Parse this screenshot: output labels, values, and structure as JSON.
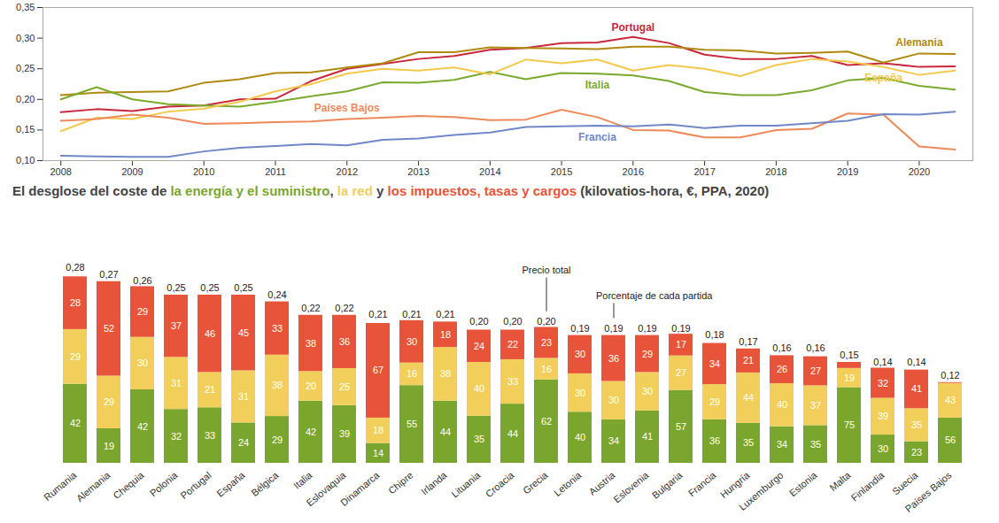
{
  "chart_data": [
    {
      "type": "line",
      "x": [
        2008,
        2008.5,
        2009,
        2009.5,
        2010,
        2010.5,
        2011,
        2011.5,
        2012,
        2012.5,
        2013,
        2013.5,
        2014,
        2014.5,
        2015,
        2015.5,
        2016,
        2016.5,
        2017,
        2017.5,
        2018,
        2018.5,
        2019,
        2019.5,
        2020,
        2020.5
      ],
      "xlim": [
        2007.75,
        2020.75
      ],
      "xticks": [
        2008,
        2009,
        2010,
        2011,
        2012,
        2013,
        2014,
        2015,
        2016,
        2017,
        2018,
        2019,
        2020
      ],
      "ylim": [
        0.1,
        0.35
      ],
      "yticks": [
        {
          "value": 0.1,
          "label": "0,10"
        },
        {
          "value": 0.15,
          "label": "0,15"
        },
        {
          "value": 0.2,
          "label": "0,20"
        },
        {
          "value": 0.25,
          "label": "0,25"
        },
        {
          "value": 0.3,
          "label": "0,30"
        },
        {
          "value": 0.35,
          "label": "0,35"
        }
      ],
      "grid": false,
      "series": [
        {
          "name": "Portugal",
          "color": "#c8283c",
          "values": [
            0.179,
            0.184,
            0.181,
            0.188,
            0.19,
            0.2,
            0.201,
            0.23,
            0.25,
            0.258,
            0.266,
            0.271,
            0.281,
            0.284,
            0.292,
            0.293,
            0.302,
            0.292,
            0.273,
            0.266,
            0.266,
            0.271,
            0.256,
            0.259,
            0.253,
            0.254
          ]
        },
        {
          "name": "Alemania",
          "color": "#b08a10",
          "values": [
            0.207,
            0.211,
            0.212,
            0.213,
            0.227,
            0.233,
            0.243,
            0.244,
            0.252,
            0.259,
            0.277,
            0.277,
            0.285,
            0.284,
            0.283,
            0.282,
            0.286,
            0.286,
            0.281,
            0.28,
            0.275,
            0.276,
            0.278,
            0.26,
            0.275,
            0.274
          ]
        },
        {
          "name": "Italia",
          "color": "#7aaa2e",
          "values": [
            0.2,
            0.22,
            0.2,
            0.192,
            0.19,
            0.188,
            0.196,
            0.205,
            0.213,
            0.228,
            0.227,
            0.232,
            0.245,
            0.233,
            0.243,
            0.242,
            0.239,
            0.23,
            0.212,
            0.207,
            0.207,
            0.215,
            0.231,
            0.235,
            0.222,
            0.216
          ]
        },
        {
          "name": "España",
          "color": "#f2c94c",
          "values": [
            0.148,
            0.17,
            0.168,
            0.18,
            0.185,
            0.196,
            0.213,
            0.225,
            0.242,
            0.25,
            0.247,
            0.252,
            0.241,
            0.265,
            0.259,
            0.265,
            0.247,
            0.256,
            0.25,
            0.238,
            0.256,
            0.266,
            0.262,
            0.253,
            0.24,
            0.247
          ]
        },
        {
          "name": "Países Bajos",
          "color": "#ee8a5a",
          "values": [
            0.165,
            0.168,
            0.175,
            0.17,
            0.16,
            0.161,
            0.163,
            0.164,
            0.168,
            0.17,
            0.173,
            0.171,
            0.166,
            0.167,
            0.183,
            0.171,
            0.15,
            0.149,
            0.138,
            0.138,
            0.15,
            0.152,
            0.177,
            0.175,
            0.123,
            0.118
          ]
        },
        {
          "name": "Francia",
          "color": "#7088c8",
          "values": [
            0.108,
            0.107,
            0.106,
            0.106,
            0.115,
            0.121,
            0.124,
            0.127,
            0.125,
            0.134,
            0.136,
            0.142,
            0.146,
            0.155,
            0.156,
            0.157,
            0.156,
            0.159,
            0.153,
            0.157,
            0.157,
            0.161,
            0.165,
            0.176,
            0.175,
            0.18
          ]
        }
      ]
    },
    {
      "type": "bar",
      "title": "El desglose del coste de la energía y el suministro, la red y los impuestos, tasas y cargos (kilovatios-hora, €, PPA, 2020)",
      "stacked": true,
      "data_labels": true,
      "tick_labels": "x",
      "categories": [
        "Rumania",
        "Alemania",
        "Chequia",
        "Polonia",
        "Portugal",
        "España",
        "Bélgica",
        "Italia",
        "Eslovaquia",
        "Dinamarca",
        "Chipre",
        "Irlanda",
        "Lituania",
        "Croacia",
        "Grecia",
        "Letonia",
        "Austria",
        "Eslovenia",
        "Bulgaria",
        "Francia",
        "Hungría",
        "Luxemburgo",
        "Estonia",
        "Malta",
        "Finlandia",
        "Suecia",
        "Países Bajos"
      ],
      "totals": [
        0.28,
        0.27,
        0.26,
        0.25,
        0.25,
        0.25,
        0.24,
        0.22,
        0.22,
        0.21,
        0.21,
        0.21,
        0.2,
        0.2,
        0.2,
        0.19,
        0.19,
        0.19,
        0.19,
        0.18,
        0.17,
        0.16,
        0.16,
        0.15,
        0.14,
        0.14,
        0.12
      ],
      "total_labels": [
        "0,28",
        "0,27",
        "0,26",
        "0,25",
        "0,25",
        "0,25",
        "0,24",
        "0,22",
        "0,22",
        "0,21",
        "0,21",
        "0,21",
        "0,20",
        "0,20",
        "0,20",
        "0,19",
        "0,19",
        "0,19",
        "0,19",
        "0,18",
        "0,17",
        "0,16",
        "0,16",
        "0,15",
        "0,14",
        "0,14",
        "0,12"
      ],
      "series": [
        {
          "name": "la energía y el suministro",
          "color": "#7aa62e",
          "values": [
            42,
            19,
            42,
            32,
            33,
            24,
            29,
            42,
            39,
            14,
            55,
            44,
            35,
            44,
            62,
            40,
            34,
            41,
            57,
            36,
            35,
            34,
            35,
            75,
            30,
            23,
            56
          ]
        },
        {
          "name": "la red",
          "color": "#f2cf5b",
          "values": [
            29,
            29,
            30,
            31,
            21,
            31,
            38,
            20,
            25,
            18,
            16,
            38,
            40,
            33,
            16,
            30,
            30,
            30,
            27,
            29,
            44,
            40,
            37,
            19,
            39,
            35,
            43
          ]
        },
        {
          "name": "los impuestos, tasas y cargos",
          "color": "#e8543a",
          "values": [
            28,
            52,
            29,
            37,
            46,
            45,
            33,
            38,
            36,
            67,
            30,
            18,
            24,
            22,
            23,
            30,
            36,
            29,
            17,
            34,
            21,
            26,
            27,
            6,
            32,
            41,
            1
          ],
          "value_labels": [
            "28",
            "52",
            "29",
            "37",
            "46",
            "45",
            "33",
            "38",
            "36",
            "67",
            "30",
            "18",
            "24",
            "22",
            "23",
            "30",
            "36",
            "29",
            "17",
            "34",
            "21",
            "26",
            "27",
            null,
            "32",
            "41",
            null
          ]
        }
      ],
      "annotations": [
        "Precio total",
        "Porcentaje de cada partida"
      ]
    }
  ]
}
